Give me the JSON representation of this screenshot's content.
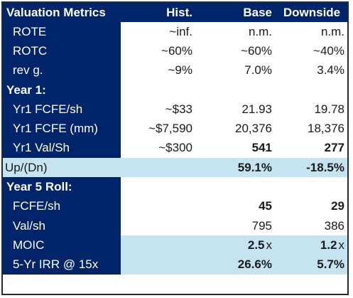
{
  "header": {
    "metric": "Valuation Metrics",
    "hist": "Hist.",
    "base": "Base",
    "downside": "Downside"
  },
  "rows": {
    "rote": {
      "label": "ROTE",
      "hist": "~inf.",
      "base": "n.m.",
      "down": "n.m."
    },
    "rotc": {
      "label": "ROTC",
      "hist": "~60%",
      "base": "~60%",
      "down": "~40%"
    },
    "revg": {
      "label": "rev g.",
      "hist": "~9%",
      "base": "7.0%",
      "down": "3.4%"
    },
    "year1": {
      "label": "Year 1:"
    },
    "fcfe_sh": {
      "label": "Yr1 FCFE/sh",
      "hist": "~$33",
      "base": "21.93",
      "down": "19.78"
    },
    "fcfe_mm": {
      "label": "Yr1 FCFE (mm)",
      "hist": "~$7,590",
      "base": "20,376",
      "down": "18,376"
    },
    "val_sh": {
      "label": "Yr1 Val/Sh",
      "hist": "~$300",
      "base": "541",
      "down": "277"
    },
    "updn": {
      "label": "Up/(Dn)",
      "hist": "",
      "base": "59.1%",
      "down": "-18.5%"
    },
    "year5": {
      "label": "Year 5 Roll:"
    },
    "fcfe5": {
      "label": "FCFE/sh",
      "hist": "",
      "base": "45",
      "down": "29"
    },
    "val5": {
      "label": "Val/sh",
      "hist": "",
      "base": "795",
      "down": "386"
    },
    "moic": {
      "label": "MOIC",
      "hist": "",
      "base": "2.5",
      "down": "1.2",
      "unit": "x"
    },
    "irr": {
      "label": "5-Yr IRR @ 15x",
      "hist": "",
      "base": "26.6%",
      "down": "5.7%"
    }
  },
  "colors": {
    "navy": "#002469",
    "highlight": "#c6e3f2"
  }
}
